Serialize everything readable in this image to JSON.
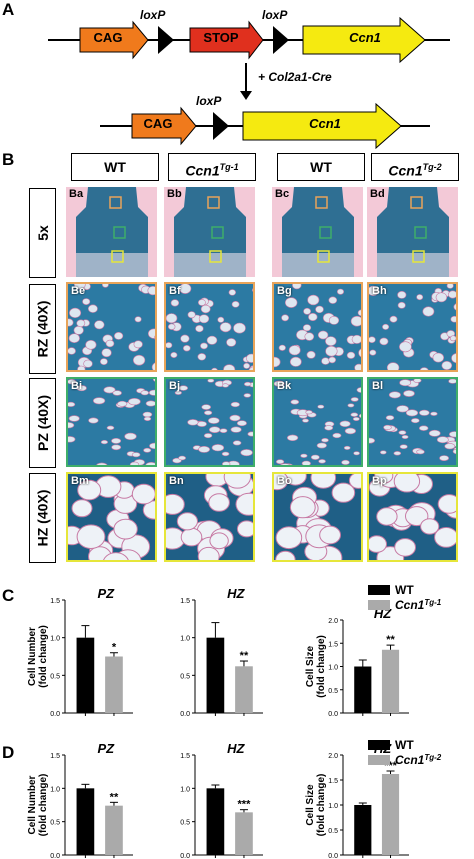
{
  "panel_labels": {
    "a": "A",
    "b": "B",
    "c": "C",
    "d": "D"
  },
  "construct": {
    "top": {
      "cag": "CAG",
      "loxp1": "loxP",
      "stop": "STOP",
      "loxp2": "loxP",
      "gene": "Ccn1"
    },
    "arrow_text": "+ Col2a1-Cre",
    "bottom": {
      "cag": "CAG",
      "loxp": "loxP",
      "gene": "Ccn1"
    },
    "colors": {
      "cag": "#f07a1c",
      "stop": "#e0301e",
      "gene": "#f5ea10",
      "triangle": "#000000"
    }
  },
  "histology": {
    "col_headers": [
      {
        "main": "WT",
        "sup": ""
      },
      {
        "main": "Ccn1",
        "sup": "Tg-1"
      },
      {
        "main": "WT",
        "sup": ""
      },
      {
        "main": "Ccn1",
        "sup": "Tg-2"
      }
    ],
    "rows": [
      {
        "label": "5x",
        "tiles": [
          "Ba",
          "Bb",
          "Bc",
          "Bd"
        ]
      },
      {
        "label": "RZ (40X)",
        "tiles": [
          "Be",
          "Bf",
          "Bg",
          "Bh"
        ]
      },
      {
        "label": "PZ (40X)",
        "tiles": [
          "Bi",
          "Bj",
          "Bk",
          "Bl"
        ]
      },
      {
        "label": "HZ (40X)",
        "tiles": [
          "Bm",
          "Bn",
          "Bo",
          "Bp"
        ]
      }
    ],
    "colors": {
      "rz": "#e8a45a",
      "pz": "#3fae6a",
      "hz": "#e6e63a"
    }
  },
  "chart_data": [
    {
      "type": "bar",
      "panel": "C",
      "title": "PZ",
      "ylabel": "Cell Number\n(fold change)",
      "ylim": [
        0,
        1.5
      ],
      "yticks": [
        0,
        0.5,
        1.0,
        1.5
      ],
      "categories": [
        "WT",
        "Ccn1Tg-1"
      ],
      "values": [
        1.0,
        0.75
      ],
      "errors": [
        0.16,
        0.05
      ],
      "annotations": [
        "",
        "*"
      ]
    },
    {
      "type": "bar",
      "panel": "C",
      "title": "HZ",
      "ylabel": "",
      "ylim": [
        0,
        1.5
      ],
      "yticks": [
        0,
        0.5,
        1.0,
        1.5
      ],
      "categories": [
        "WT",
        "Ccn1Tg-1"
      ],
      "values": [
        1.0,
        0.62
      ],
      "errors": [
        0.2,
        0.07
      ],
      "annotations": [
        "",
        "**"
      ]
    },
    {
      "type": "bar",
      "panel": "C",
      "title": "HZ",
      "ylabel": "Cell Size\n(fold change)",
      "ylim": [
        0,
        2.0
      ],
      "yticks": [
        0,
        0.5,
        1.0,
        1.5,
        2.0
      ],
      "categories": [
        "WT",
        "Ccn1Tg-1"
      ],
      "values": [
        1.0,
        1.36
      ],
      "errors": [
        0.14,
        0.1
      ],
      "annotations": [
        "",
        "**"
      ]
    },
    {
      "type": "bar",
      "panel": "D",
      "title": "PZ",
      "ylabel": "Cell Number\n(fold change)",
      "ylim": [
        0,
        1.5
      ],
      "yticks": [
        0,
        0.5,
        1.0,
        1.5
      ],
      "categories": [
        "WT",
        "Ccn1Tg-2"
      ],
      "values": [
        1.0,
        0.74
      ],
      "errors": [
        0.06,
        0.05
      ],
      "annotations": [
        "",
        "**"
      ]
    },
    {
      "type": "bar",
      "panel": "D",
      "title": "HZ",
      "ylabel": "",
      "ylim": [
        0,
        1.5
      ],
      "yticks": [
        0,
        0.5,
        1.0,
        1.5
      ],
      "categories": [
        "WT",
        "Ccn1Tg-2"
      ],
      "values": [
        1.0,
        0.64
      ],
      "errors": [
        0.05,
        0.04
      ],
      "annotations": [
        "",
        "***"
      ]
    },
    {
      "type": "bar",
      "panel": "D",
      "title": "HZ",
      "ylabel": "Cell Size\n(fold change)",
      "ylim": [
        0,
        2.0
      ],
      "yticks": [
        0,
        0.5,
        1.0,
        1.5,
        2.0
      ],
      "categories": [
        "WT",
        "Ccn1Tg-2"
      ],
      "values": [
        1.0,
        1.62
      ],
      "errors": [
        0.04,
        0.06
      ],
      "annotations": [
        "",
        "***"
      ]
    }
  ],
  "legends": [
    {
      "panel": "C",
      "entries": [
        {
          "label": "WT",
          "sup": "",
          "color": "#000000"
        },
        {
          "label": "Ccn1",
          "sup": "Tg-1",
          "color": "#aaaaaa"
        }
      ]
    },
    {
      "panel": "D",
      "entries": [
        {
          "label": "WT",
          "sup": "",
          "color": "#000000"
        },
        {
          "label": "Ccn1",
          "sup": "Tg-2",
          "color": "#aaaaaa"
        }
      ]
    }
  ]
}
